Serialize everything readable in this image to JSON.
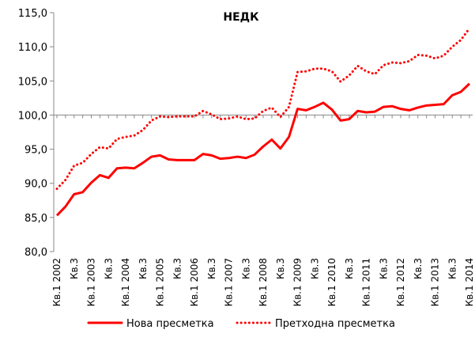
{
  "chart_data": {
    "type": "line",
    "title": "НЕДК",
    "categories": [
      "Кв.1 2002",
      null,
      "Кв.3",
      null,
      "Кв.1 2003",
      null,
      "Кв.3",
      null,
      "Кв.1 2004",
      null,
      "Кв.3",
      null,
      "Кв.1 2005",
      null,
      "Кв.3",
      null,
      "Кв.1 2006",
      null,
      "Кв.3",
      null,
      "Кв.1 2007",
      null,
      "Кв.3",
      null,
      "Кв.1 2008",
      null,
      "Кв.3",
      null,
      "Кв.1 2009",
      null,
      "Кв.3",
      null,
      "Кв.1 2010",
      null,
      "Кв.3",
      null,
      "Кв.1 2011",
      null,
      "Кв.3",
      null,
      "Кв.1 2012",
      null,
      "Кв.3",
      null,
      "Кв.1 2013",
      null,
      "Кв.3",
      null,
      "Кв.1 2014"
    ],
    "series": [
      {
        "name": "Нова пресметка",
        "color": "#ff0000",
        "style": "solid",
        "values": [
          85.3,
          86.6,
          88.4,
          88.7,
          90.1,
          91.2,
          90.8,
          92.2,
          92.3,
          92.2,
          93.0,
          93.9,
          94.1,
          93.5,
          93.4,
          93.4,
          93.4,
          94.3,
          94.1,
          93.6,
          93.7,
          93.9,
          93.7,
          94.2,
          95.4,
          96.4,
          95.1,
          96.8,
          100.9,
          100.7,
          101.2,
          101.8,
          100.8,
          99.2,
          99.4,
          100.6,
          100.4,
          100.5,
          101.2,
          101.3,
          100.9,
          100.7,
          101.1,
          101.4,
          101.5,
          101.6,
          102.9,
          103.4,
          104.6
        ]
      },
      {
        "name": "Претходна пресметка",
        "color": "#ff0000",
        "style": "dotted",
        "values": [
          89.2,
          90.5,
          92.6,
          93.0,
          94.3,
          95.3,
          95.1,
          96.5,
          96.8,
          97.0,
          97.8,
          99.2,
          99.8,
          99.7,
          99.8,
          99.8,
          99.8,
          100.6,
          100.1,
          99.4,
          99.5,
          99.8,
          99.4,
          99.5,
          100.6,
          101.1,
          99.7,
          101.2,
          106.3,
          106.4,
          106.8,
          106.8,
          106.4,
          104.9,
          105.8,
          107.2,
          106.4,
          106.0,
          107.3,
          107.7,
          107.6,
          107.9,
          108.8,
          108.7,
          108.3,
          108.7,
          110.0,
          111.0,
          112.7
        ]
      }
    ],
    "ylim": [
      80,
      115
    ],
    "yticks": [
      {
        "value": 80,
        "label": "80,0"
      },
      {
        "value": 85,
        "label": "85,0"
      },
      {
        "value": 90,
        "label": "90,0"
      },
      {
        "value": 95,
        "label": "95,0"
      },
      {
        "value": 100,
        "label": "100,0"
      },
      {
        "value": 105,
        "label": "105,0"
      },
      {
        "value": 110,
        "label": "110,0"
      },
      {
        "value": 115,
        "label": "115,0"
      }
    ],
    "x_axis_at": 100,
    "legend": "bottom"
  }
}
